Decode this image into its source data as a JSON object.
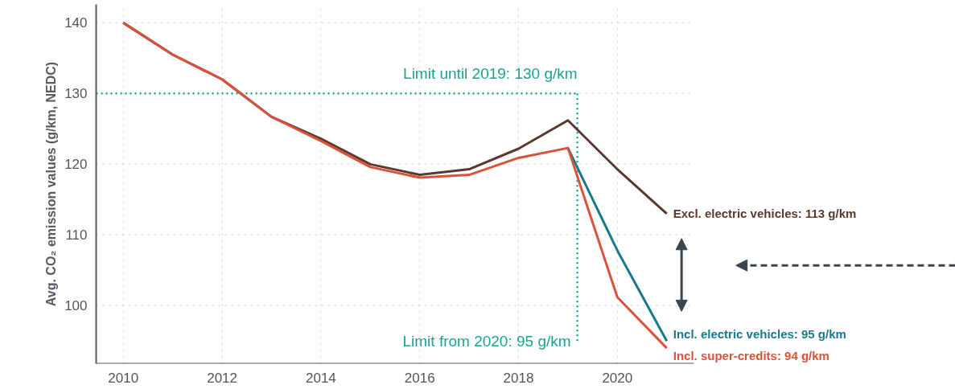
{
  "chart_data": {
    "type": "line",
    "ylabel": "Avg. CO₂ emission values (g/km, NEDC)",
    "xlim": [
      2009.45,
      2021.55
    ],
    "xticks": [
      2010,
      2012,
      2014,
      2016,
      2018,
      2020
    ],
    "ylim": [
      91.8,
      142.6
    ],
    "yticks": [
      100,
      110,
      120,
      130,
      140
    ],
    "grid": true,
    "line_style": "solid",
    "marker": "none",
    "annotations": [
      {
        "text": "Limit from 2020: 95 g/km",
        "x": 2019.19,
        "y": 95
      }
    ],
    "series": [
      {
        "name": "Excl. electric vehicles: 113 g/km",
        "color": "#5a3a30",
        "x": [
          2010,
          2011,
          2012,
          2013,
          2014,
          2015,
          2016,
          2017,
          2018,
          2019,
          2020,
          2021
        ],
        "values": [
          140,
          135.5,
          132,
          126.7,
          123.6,
          120,
          118.5,
          119.3,
          122.2,
          126.2,
          119.3,
          113
        ]
      },
      {
        "name": "Incl. electric vehicles: 95 g/km",
        "color": "#1a7a8c",
        "x": [
          2019,
          2020,
          2021
        ],
        "values": [
          122.3,
          107.8,
          95
        ]
      },
      {
        "name": "Incl. super-credits: 94 g/km",
        "color": "#d9533a",
        "x": [
          2010,
          2011,
          2012,
          2013,
          2014,
          2015,
          2016,
          2017,
          2018,
          2019,
          2020,
          2021
        ],
        "values": [
          140,
          135.5,
          132,
          126.7,
          123.3,
          119.6,
          118.1,
          118.5,
          120.9,
          122.3,
          101.2,
          94
        ]
      }
    ],
    "ref_lines": [
      {
        "axis": "y",
        "value": 130,
        "label": "Limit until 2019: 130 g/km",
        "color": "#1aa393",
        "line_style": "dotted"
      },
      {
        "axis": "x",
        "value": 2019.19,
        "color": "#1aa393",
        "line_style": "dotted"
      }
    ]
  }
}
